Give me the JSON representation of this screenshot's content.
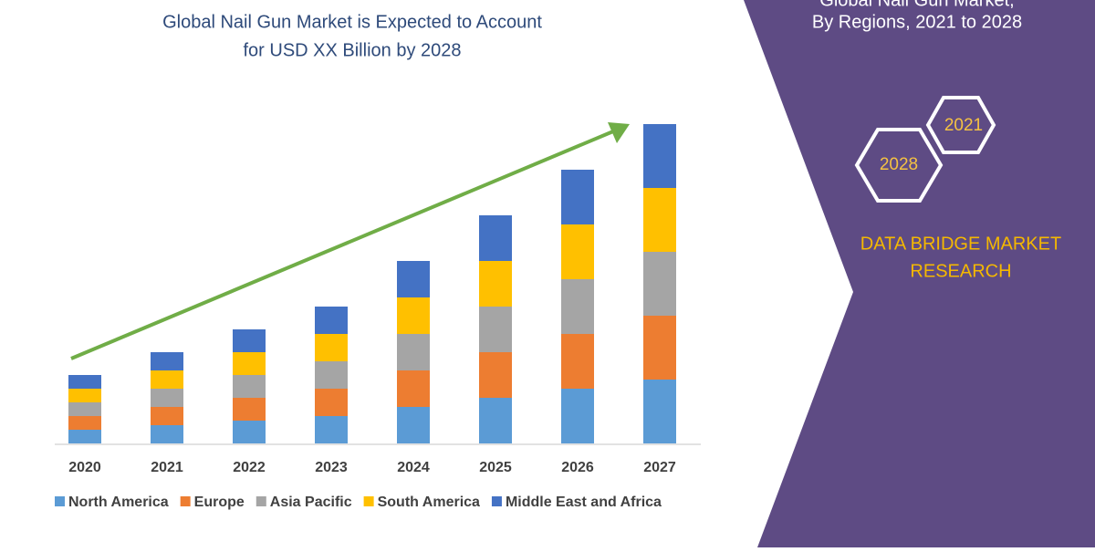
{
  "chart_data": {
    "type": "bar",
    "stacked": true,
    "title": [
      "Global Nail Gun Market is Expected to Account",
      "for USD XX Billion by 2028"
    ],
    "categories": [
      "2020",
      "2021",
      "2022",
      "2023",
      "2024",
      "2025",
      "2026",
      "2027"
    ],
    "series": [
      {
        "name": "North America",
        "color": "#5b9bd5",
        "values": [
          1.5,
          2.0,
          2.5,
          3.0,
          4.0,
          5.0,
          6.0,
          7.0
        ]
      },
      {
        "name": "Europe",
        "color": "#ed7d31",
        "values": [
          1.5,
          2.0,
          2.5,
          3.0,
          4.0,
          5.0,
          6.0,
          7.0
        ]
      },
      {
        "name": "Asia Pacific",
        "color": "#a5a5a5",
        "values": [
          1.5,
          2.0,
          2.5,
          3.0,
          4.0,
          5.0,
          6.0,
          7.0
        ]
      },
      {
        "name": "South America",
        "color": "#ffc000",
        "values": [
          1.5,
          2.0,
          2.5,
          3.0,
          4.0,
          5.0,
          6.0,
          7.0
        ]
      },
      {
        "name": "Middle East and Africa",
        "color": "#4472c4",
        "values": [
          1.5,
          2.0,
          2.5,
          3.0,
          4.0,
          5.0,
          6.0,
          7.0
        ]
      }
    ],
    "ylim": [
      0,
      36
    ],
    "panel": {
      "title": [
        "Global Nail Gun Market,",
        "By Regions, 2021 to 2028"
      ],
      "hexagons": [
        "2021",
        "2028"
      ],
      "brand": [
        "DATA BRIDGE MARKET",
        "RESEARCH"
      ]
    }
  }
}
